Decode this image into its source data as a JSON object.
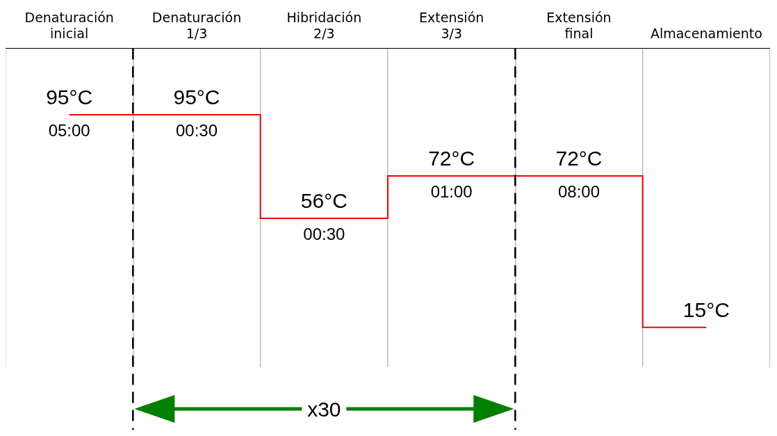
{
  "chart_data": {
    "type": "step",
    "categories": [
      "Denaturación inicial",
      "Denaturación 1/3",
      "Hibridación 2/3",
      "Extensión 3/3",
      "Extensión final",
      "Almacenamiento"
    ],
    "values": [
      95,
      95,
      56,
      72,
      72,
      15
    ],
    "color": "#ff0000",
    "value_labels": [
      "95°C",
      "95°C",
      "56°C",
      "72°C",
      "72°C",
      "15°C"
    ],
    "annotations": [
      {
        "text": "05:00",
        "x": "Denaturación inicial",
        "y": 95
      },
      {
        "text": "00:30",
        "x": "Denaturación 1/3",
        "y": 95
      },
      {
        "text": "00:30",
        "x": "Hibridación 2/3",
        "y": 56
      },
      {
        "text": "01:00",
        "x": "Extensión 3/3",
        "y": 72
      },
      {
        "text": "08:00",
        "x": "Extensión final",
        "y": 72
      },
      "x30"
    ],
    "grid": "x",
    "legend": false
  }
}
